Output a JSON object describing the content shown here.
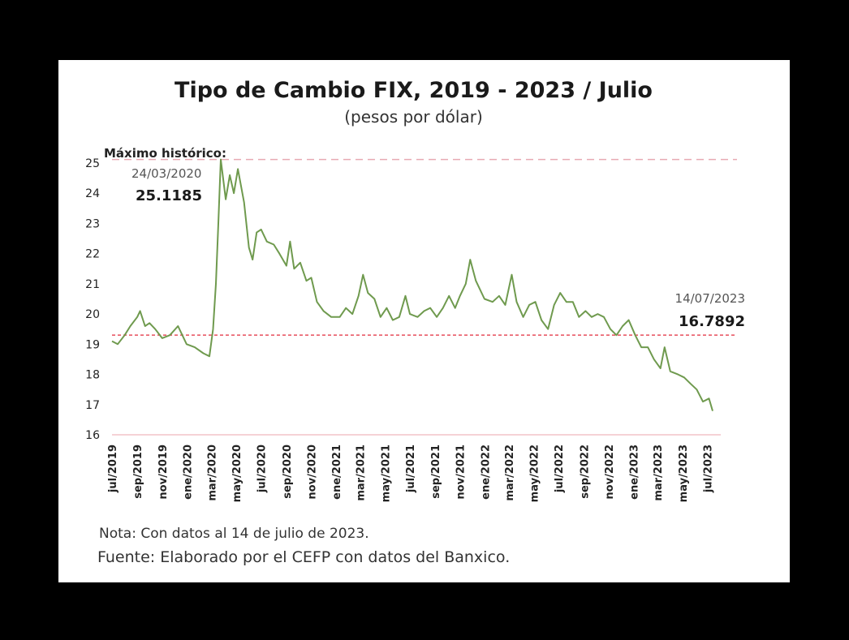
{
  "chart_data": {
    "type": "line",
    "title": "Tipo de Cambio FIX, 2019 - 2023 / Julio",
    "subtitle": "(pesos por dólar)",
    "ylim": [
      16,
      25
    ],
    "yticks": [
      16,
      17,
      18,
      19,
      20,
      21,
      22,
      23,
      24,
      25
    ],
    "xlim": [
      "2019-07-01",
      "2023-07-14"
    ],
    "xticks": [
      {
        "date": "2019-07-01",
        "label": "jul/2019"
      },
      {
        "date": "2019-09-01",
        "label": "sep/2019"
      },
      {
        "date": "2019-11-01",
        "label": "nov/2019"
      },
      {
        "date": "2020-01-01",
        "label": "ene/2020"
      },
      {
        "date": "2020-03-01",
        "label": "mar/2020"
      },
      {
        "date": "2020-05-01",
        "label": "may/2020"
      },
      {
        "date": "2020-07-01",
        "label": "jul/2020"
      },
      {
        "date": "2020-09-01",
        "label": "sep/2020"
      },
      {
        "date": "2020-11-01",
        "label": "nov/2020"
      },
      {
        "date": "2021-01-01",
        "label": "ene/2021"
      },
      {
        "date": "2021-03-01",
        "label": "mar/2021"
      },
      {
        "date": "2021-05-01",
        "label": "may/2021"
      },
      {
        "date": "2021-07-01",
        "label": "jul/2021"
      },
      {
        "date": "2021-09-01",
        "label": "sep/2021"
      },
      {
        "date": "2021-11-01",
        "label": "nov/2021"
      },
      {
        "date": "2022-01-01",
        "label": "ene/2022"
      },
      {
        "date": "2022-03-01",
        "label": "mar/2022"
      },
      {
        "date": "2022-05-01",
        "label": "may/2022"
      },
      {
        "date": "2022-07-01",
        "label": "jul/2022"
      },
      {
        "date": "2022-09-01",
        "label": "sep/2022"
      },
      {
        "date": "2022-11-01",
        "label": "nov/2022"
      },
      {
        "date": "2023-01-01",
        "label": "ene/2023"
      },
      {
        "date": "2023-03-01",
        "label": "mar/2023"
      },
      {
        "date": "2023-05-01",
        "label": "may/2023"
      },
      {
        "date": "2023-07-01",
        "label": "jul/2023"
      }
    ],
    "series": [
      {
        "color": "#6f9a4e",
        "points": [
          [
            "2019-07-01",
            19.1
          ],
          [
            "2019-07-15",
            19.0
          ],
          [
            "2019-08-01",
            19.3
          ],
          [
            "2019-08-15",
            19.6
          ],
          [
            "2019-09-01",
            19.9
          ],
          [
            "2019-09-08",
            20.1
          ],
          [
            "2019-09-20",
            19.6
          ],
          [
            "2019-10-01",
            19.7
          ],
          [
            "2019-10-15",
            19.5
          ],
          [
            "2019-11-01",
            19.2
          ],
          [
            "2019-11-20",
            19.3
          ],
          [
            "2019-12-10",
            19.6
          ],
          [
            "2019-12-31",
            19.0
          ],
          [
            "2020-01-20",
            18.9
          ],
          [
            "2020-02-10",
            18.7
          ],
          [
            "2020-02-25",
            18.6
          ],
          [
            "2020-03-05",
            19.5
          ],
          [
            "2020-03-12",
            21.0
          ],
          [
            "2020-03-18",
            23.0
          ],
          [
            "2020-03-24",
            25.1185
          ],
          [
            "2020-04-05",
            23.8
          ],
          [
            "2020-04-15",
            24.6
          ],
          [
            "2020-04-25",
            24.0
          ],
          [
            "2020-05-05",
            24.8
          ],
          [
            "2020-05-20",
            23.7
          ],
          [
            "2020-06-01",
            22.2
          ],
          [
            "2020-06-10",
            21.8
          ],
          [
            "2020-06-20",
            22.7
          ],
          [
            "2020-07-01",
            22.8
          ],
          [
            "2020-07-15",
            22.4
          ],
          [
            "2020-08-01",
            22.3
          ],
          [
            "2020-08-15",
            22.0
          ],
          [
            "2020-09-01",
            21.6
          ],
          [
            "2020-09-10",
            22.4
          ],
          [
            "2020-09-20",
            21.5
          ],
          [
            "2020-10-05",
            21.7
          ],
          [
            "2020-10-20",
            21.1
          ],
          [
            "2020-11-01",
            21.2
          ],
          [
            "2020-11-15",
            20.4
          ],
          [
            "2020-12-01",
            20.1
          ],
          [
            "2020-12-20",
            19.9
          ],
          [
            "2021-01-10",
            19.9
          ],
          [
            "2021-01-25",
            20.2
          ],
          [
            "2021-02-10",
            20.0
          ],
          [
            "2021-02-25",
            20.6
          ],
          [
            "2021-03-08",
            21.3
          ],
          [
            "2021-03-20",
            20.7
          ],
          [
            "2021-04-05",
            20.5
          ],
          [
            "2021-04-20",
            19.9
          ],
          [
            "2021-05-05",
            20.2
          ],
          [
            "2021-05-20",
            19.8
          ],
          [
            "2021-06-05",
            19.9
          ],
          [
            "2021-06-20",
            20.6
          ],
          [
            "2021-07-01",
            20.0
          ],
          [
            "2021-07-20",
            19.9
          ],
          [
            "2021-08-05",
            20.1
          ],
          [
            "2021-08-20",
            20.2
          ],
          [
            "2021-09-05",
            19.9
          ],
          [
            "2021-09-20",
            20.2
          ],
          [
            "2021-10-05",
            20.6
          ],
          [
            "2021-10-20",
            20.2
          ],
          [
            "2021-11-01",
            20.6
          ],
          [
            "2021-11-15",
            21.0
          ],
          [
            "2021-11-26",
            21.8
          ],
          [
            "2021-12-10",
            21.1
          ],
          [
            "2021-12-31",
            20.5
          ],
          [
            "2022-01-20",
            20.4
          ],
          [
            "2022-02-05",
            20.6
          ],
          [
            "2022-02-20",
            20.3
          ],
          [
            "2022-03-08",
            21.3
          ],
          [
            "2022-03-20",
            20.4
          ],
          [
            "2022-04-05",
            19.9
          ],
          [
            "2022-04-20",
            20.3
          ],
          [
            "2022-05-05",
            20.4
          ],
          [
            "2022-05-20",
            19.8
          ],
          [
            "2022-06-05",
            19.5
          ],
          [
            "2022-06-20",
            20.3
          ],
          [
            "2022-07-05",
            20.7
          ],
          [
            "2022-07-20",
            20.4
          ],
          [
            "2022-08-05",
            20.4
          ],
          [
            "2022-08-20",
            19.9
          ],
          [
            "2022-09-05",
            20.1
          ],
          [
            "2022-09-20",
            19.9
          ],
          [
            "2022-10-05",
            20.0
          ],
          [
            "2022-10-20",
            19.9
          ],
          [
            "2022-11-05",
            19.5
          ],
          [
            "2022-11-20",
            19.3
          ],
          [
            "2022-12-05",
            19.6
          ],
          [
            "2022-12-20",
            19.8
          ],
          [
            "2023-01-05",
            19.3
          ],
          [
            "2023-01-20",
            18.9
          ],
          [
            "2023-02-05",
            18.9
          ],
          [
            "2023-02-20",
            18.5
          ],
          [
            "2023-03-08",
            18.2
          ],
          [
            "2023-03-18",
            18.9
          ],
          [
            "2023-04-01",
            18.1
          ],
          [
            "2023-04-20",
            18.0
          ],
          [
            "2023-05-05",
            17.9
          ],
          [
            "2023-05-20",
            17.7
          ],
          [
            "2023-06-05",
            17.5
          ],
          [
            "2023-06-20",
            17.1
          ],
          [
            "2023-07-05",
            17.2
          ],
          [
            "2023-07-14",
            16.7892
          ]
        ]
      }
    ],
    "reference_lines": [
      {
        "y": 25.1185,
        "style": "dashed",
        "color": "#e8aab2"
      },
      {
        "y": 19.3,
        "style": "dashed",
        "color": "#e84d5c"
      }
    ],
    "annotations": {
      "max_heading": "Máximo histórico:",
      "max_date": "24/03/2020",
      "max_value": "25.1185",
      "last_date": "14/07/2023",
      "last_value": "16.7892"
    },
    "baseline_color": "#f2c3c8"
  },
  "footer": {
    "note": "Nota: Con datos al 14 de julio de 2023.",
    "source": "Fuente: Elaborado por el CEFP con datos del Banxico."
  }
}
